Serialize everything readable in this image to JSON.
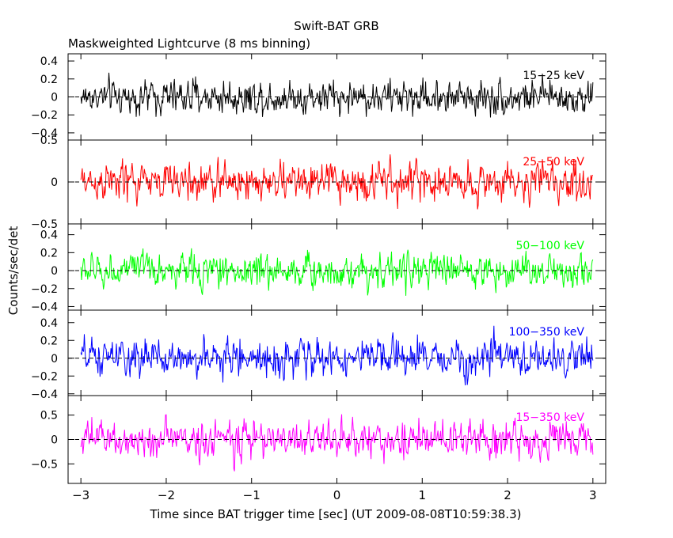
{
  "title": "Swift-BAT GRB",
  "subtitle": "Maskweighted Lightcurve (8 ms binning)",
  "ylabel": "Counts/sec/det",
  "xlabel": "Time since BAT trigger time [sec] (UT 2009-08-08T10:59:38.3)",
  "chart_data": {
    "type": "line",
    "title": "Swift-BAT GRB",
    "subtitle": "Maskweighted Lightcurve (8 ms binning)",
    "xlabel": "Time since BAT trigger time [sec] (UT 2009-08-08T10:59:38.3)",
    "ylabel": "Counts/sec/det",
    "xlim": [
      -3.15,
      3.15
    ],
    "x_ticks": [
      -3,
      -2,
      -1,
      0,
      1,
      2,
      3
    ],
    "x_tick_labels": [
      "−3",
      "−2",
      "−1",
      "0",
      "1",
      "2",
      "3"
    ],
    "bin_size_sec": 0.008,
    "x_start": -3.0,
    "x_end": 3.0,
    "grid": false,
    "zero_line": "dashed",
    "panels": [
      {
        "band": "15−25 keV",
        "color": "#000000",
        "ylim": [
          -0.48,
          0.48
        ],
        "yticks": [
          -0.4,
          -0.2,
          0,
          0.2,
          0.4
        ],
        "ytick_labels": [
          "−0.4",
          "−0.2",
          "0",
          "0.2",
          "0.4"
        ],
        "noise_amplitude": 0.14
      },
      {
        "band": "25−50 keV",
        "color": "#ff0000",
        "ylim": [
          -0.5,
          0.5
        ],
        "yticks": [
          -0.5,
          0,
          0.5
        ],
        "ytick_labels": [
          "−0.5",
          "0",
          "0.5"
        ],
        "noise_amplitude": 0.17
      },
      {
        "band": "50−100 keV",
        "color": "#00ff00",
        "ylim": [
          -0.44,
          0.52
        ],
        "yticks": [
          -0.4,
          -0.2,
          0,
          0.2,
          0.4
        ],
        "ytick_labels": [
          "−0.4",
          "−0.2",
          "0",
          "0.2",
          "0.4"
        ],
        "noise_amplitude": 0.14
      },
      {
        "band": "100−350 keV",
        "color": "#0000ff",
        "ylim": [
          -0.42,
          0.54
        ],
        "yticks": [
          -0.4,
          -0.2,
          0,
          0.2,
          0.4
        ],
        "ytick_labels": [
          "−0.4",
          "−0.2",
          "0",
          "0.2",
          "0.4"
        ],
        "noise_amplitude": 0.15
      },
      {
        "band": "15−350 keV",
        "color": "#ff00ff",
        "ylim": [
          -0.9,
          0.9
        ],
        "yticks": [
          -0.5,
          0,
          0.5
        ],
        "ytick_labels": [
          "−0.5",
          "0",
          "0.5"
        ],
        "noise_amplitude": 0.28
      }
    ]
  }
}
